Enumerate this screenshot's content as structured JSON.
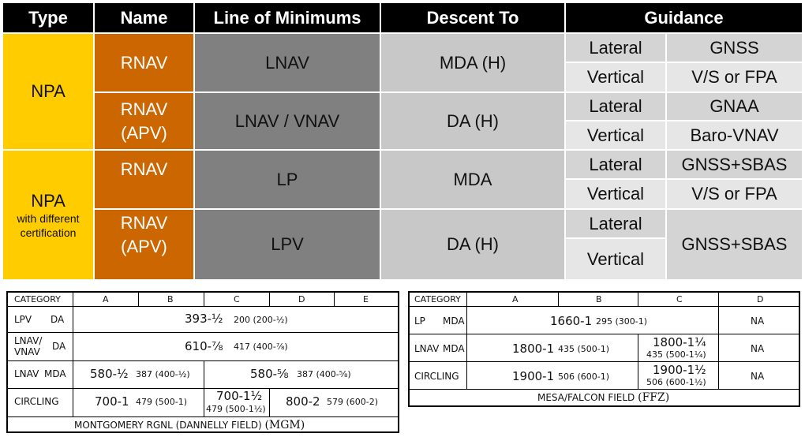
{
  "header": {
    "type": "Type",
    "name": "Name",
    "line_of_minimums": "Line of Minimums",
    "descent_to": "Descent To",
    "guidance": "Guidance"
  },
  "rows": [
    {
      "type": "NPA",
      "name": "RNAV",
      "minimums": "LNAV",
      "descent": "MDA (H)",
      "lateral_label": "Lateral",
      "lateral": "GNSS",
      "vertical_label": "Vertical",
      "vertical": "V/S or FPA"
    },
    {
      "name_line1": "RNAV",
      "name_line2": "(APV)",
      "minimums": "LNAV / VNAV",
      "descent": "DA (H)",
      "lateral_label": "Lateral",
      "lateral": "GNAA",
      "vertical_label": "Vertical",
      "vertical": "Baro-VNAV"
    },
    {
      "type": "NPA",
      "type_sub1": "with different",
      "type_sub2": "certification",
      "name": "RNAV",
      "minimums": "LP",
      "descent": "MDA",
      "lateral_label": "Lateral",
      "lateral": "GNSS+SBAS",
      "vertical_label": "Vertical",
      "vertical": "V/S or FPA"
    },
    {
      "name_line1": "RNAV",
      "name_line2": "(APV)",
      "minimums": "LPV",
      "descent": "DA (H)",
      "lateral_label": "Lateral",
      "vertical_label": "Vertical",
      "guidance": "GNSS+SBAS"
    }
  ],
  "mgm": {
    "headers": [
      "CATEGORY",
      "A",
      "B",
      "C",
      "D",
      "E"
    ],
    "lpv": {
      "label": "LPV",
      "type": "DA",
      "value": "393-½",
      "sub": "200 (200-½)"
    },
    "lnav_vnav": {
      "label1": "LNAV/",
      "label2": "VNAV",
      "type": "DA",
      "value": "610-⅞",
      "sub": "417 (400-⅞)"
    },
    "lnav_mda": {
      "label": "LNAV",
      "type": "MDA",
      "ab_value": "580-½",
      "ab_sub": "387 (400-½)",
      "ce_value": "580-⅝",
      "ce_sub": "387 (400-⅝)"
    },
    "circling": {
      "label": "CIRCLING",
      "ab_value": "700-1",
      "ab_sub": "479 (500-1)",
      "c_value": "700-1½",
      "c_sub": "479 (500-1½)",
      "de_value": "800-2",
      "de_sub": "579 (600-2)"
    },
    "caption": "MONTGOMERY RGNL (DANNELLY FIELD)",
    "code": "(MGM)"
  },
  "ffz": {
    "headers": [
      "CATEGORY",
      "A",
      "B",
      "C",
      "D"
    ],
    "lp": {
      "label": "LP",
      "type": "MDA",
      "value": "1660-1",
      "sub": "295 (300-1)",
      "d": "NA"
    },
    "lnav_mda": {
      "label": "LNAV",
      "type": "MDA",
      "ab_value": "1800-1",
      "ab_sub": "435 (500-1)",
      "c_value": "1800-1¼",
      "c_sub": "435 (500-1¼)",
      "d": "NA"
    },
    "circling": {
      "label": "CIRCLING",
      "ab_value": "1900-1",
      "ab_sub": "506 (600-1)",
      "c_value": "1900-1½",
      "c_sub": "506 (600-1½)",
      "d": "NA"
    },
    "caption": "MESA/FALCON FIELD",
    "code": "(FFZ)"
  }
}
